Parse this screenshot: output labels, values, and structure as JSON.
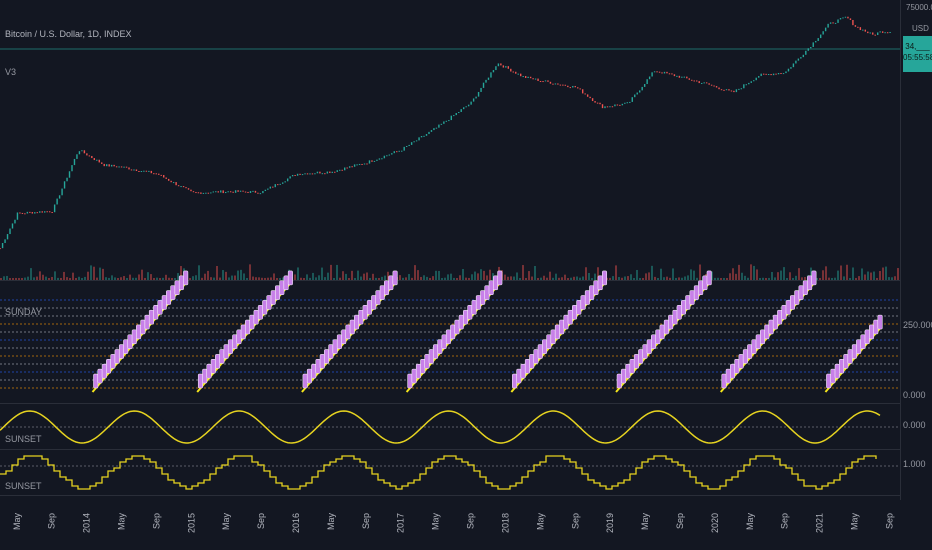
{
  "header": {
    "symbol_title": "Bitcoin / U.S. Dollar, 1D, INDEX",
    "study_label": "V3",
    "currency": "USD"
  },
  "price_tag": {
    "value": "34,___",
    "countdown": "05:55:58"
  },
  "price_axis": {
    "top_label": "75000.00"
  },
  "panes": {
    "sunday": {
      "title": "SUNDAY",
      "level_label": "250.000",
      "zero_label": "0.000"
    },
    "sine1": {
      "title": "SUNSET",
      "level_label": "0.000"
    },
    "sine2": {
      "title": "SUNSET",
      "level_label": "1.000"
    }
  },
  "time_axis": {
    "labels": [
      "May",
      "Sep",
      "2014",
      "May",
      "Sep",
      "2015",
      "May",
      "Sep",
      "2016",
      "May",
      "Sep",
      "2017",
      "May",
      "Sep",
      "2018",
      "May",
      "Sep",
      "2019",
      "May",
      "Sep",
      "2020",
      "May",
      "Sep",
      "2021",
      "May",
      "Sep"
    ]
  },
  "colors": {
    "background": "#131722",
    "up": "#26a69a",
    "down": "#ef5350",
    "sine": "#e6d320",
    "diagonal": "#f5e61b",
    "bar_fill": "#c780e8",
    "bar_border": "#ffffff",
    "grid_blue": "#2962ff",
    "grid_orange": "#ff9800",
    "grid_white": "#b2b5be"
  },
  "chart_data": [
    {
      "type": "line",
      "title": "Bitcoin / U.S. Dollar, 1D, INDEX",
      "x": [
        "2013-03",
        "2013-05",
        "2013-09",
        "2013-12",
        "2014-03",
        "2014-05",
        "2014-09",
        "2015-01",
        "2015-05",
        "2015-09",
        "2016-01",
        "2016-05",
        "2016-09",
        "2017-01",
        "2017-05",
        "2017-09",
        "2017-12",
        "2018-03",
        "2018-05",
        "2018-09",
        "2018-12",
        "2019-03",
        "2019-06",
        "2019-09",
        "2019-12",
        "2020-03",
        "2020-06",
        "2020-09",
        "2020-12",
        "2021-02",
        "2021-04",
        "2021-05",
        "2021-07",
        "2021-08"
      ],
      "y": [
        40,
        120,
        130,
        900,
        550,
        520,
        420,
        230,
        240,
        235,
        420,
        450,
        600,
        900,
        1800,
        4000,
        14000,
        9000,
        8000,
        6500,
        3500,
        3900,
        11000,
        9000,
        7200,
        5500,
        9500,
        10500,
        25000,
        48000,
        60000,
        45000,
        34000,
        38000
      ],
      "y_scale": "log",
      "currency": "USD"
    },
    {
      "type": "bar",
      "title": "SUNDAY",
      "yticks": [
        0,
        250
      ],
      "segments_per_cycle": 22,
      "cycles_visible": 8,
      "note_series": "stepped rising purple bars with yellow diagonal in each yearly cycle"
    },
    {
      "type": "line",
      "title": "SUNSET",
      "series": [
        {
          "name": "SUNSET",
          "shape": "sine",
          "periods_per_year": 1
        }
      ],
      "yticks": [
        0
      ]
    },
    {
      "type": "line",
      "title": "SUNSET",
      "series": [
        {
          "name": "SUNSET",
          "shape": "stepped sine",
          "periods_per_year": 1
        }
      ],
      "yticks": [
        1
      ]
    }
  ]
}
